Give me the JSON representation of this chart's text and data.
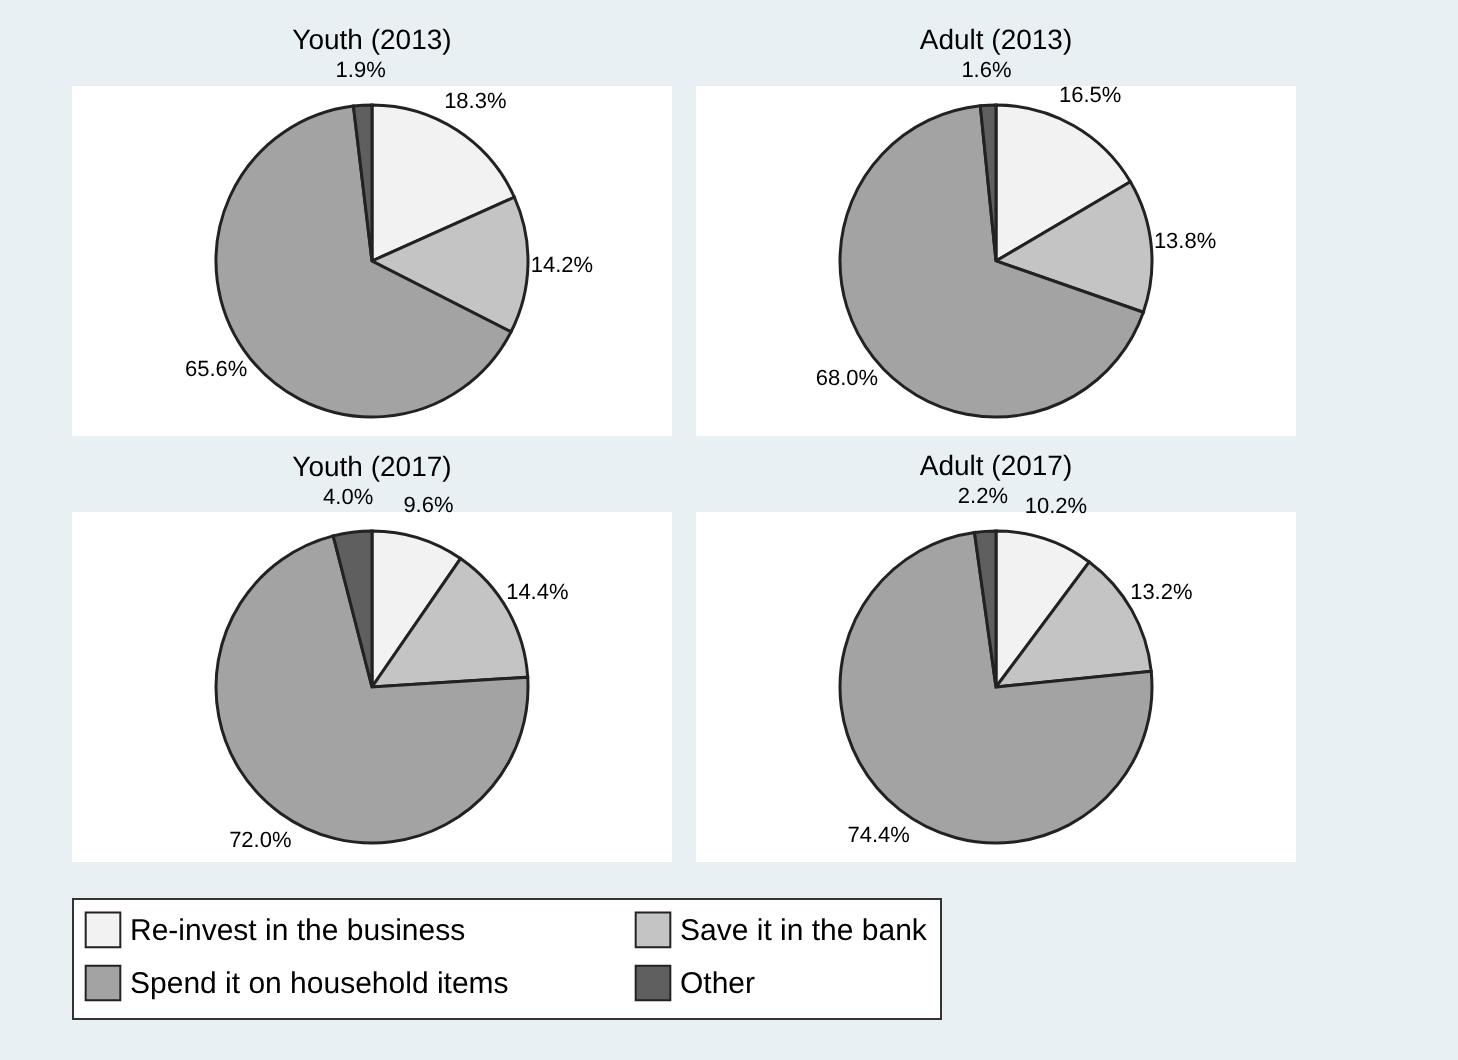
{
  "chart_data": [
    {
      "type": "pie",
      "title": "Youth (2013)",
      "categories": [
        "Re-invest in the business",
        "Save it in the bank",
        "Spend it on household items",
        "Other"
      ],
      "values": [
        18.3,
        14.2,
        65.6,
        1.9
      ],
      "value_labels": [
        "18.3%",
        "14.2%",
        "65.6%",
        "1.9%"
      ],
      "colors": [
        "#f2f2f2",
        "#c4c4c4",
        "#a3a3a3",
        "#5f5f5f"
      ],
      "legend": "bottom"
    },
    {
      "type": "pie",
      "title": "Adult (2013)",
      "categories": [
        null,
        null,
        null,
        null
      ],
      "values": [
        16.5,
        13.8,
        68.0,
        1.6
      ],
      "value_labels": [
        "16.5%",
        "13.8%",
        "68.0%",
        "1.6%"
      ],
      "colors": [
        "#f2f2f2",
        "#c4c4c4",
        "#a3a3a3",
        "#5f5f5f"
      ]
    },
    {
      "type": "pie",
      "title": "Youth (2017)",
      "categories": [
        null,
        null,
        null,
        null
      ],
      "values": [
        9.6,
        14.4,
        72.0,
        4.0
      ],
      "value_labels": [
        "9.6%",
        "14.4%",
        "72.0%",
        "4.0%"
      ],
      "colors": [
        "#f2f2f2",
        "#c4c4c4",
        "#a3a3a3",
        "#5f5f5f"
      ]
    },
    {
      "type": "pie",
      "title": "Adult (2017)",
      "categories": [
        null,
        null,
        null,
        null
      ],
      "values": [
        10.2,
        13.2,
        74.4,
        2.2
      ],
      "value_labels": [
        "10.2%",
        "13.2%",
        "74.4%",
        "2.2%"
      ],
      "colors": [
        "#f2f2f2",
        "#c4c4c4",
        "#a3a3a3",
        "#5f5f5f"
      ]
    }
  ]
}
